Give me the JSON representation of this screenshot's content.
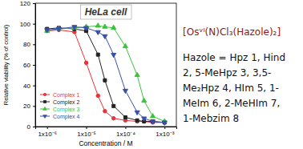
{
  "chart_data": {
    "type": "line",
    "title": "HeLa cell",
    "x_label": "Concentration / M",
    "y_label": "Relative viability (% of control)",
    "x": [
      1e-06,
      2e-06,
      5e-06,
      1e-05,
      2e-05,
      3e-05,
      5e-05,
      0.0001,
      0.0002,
      0.0003,
      0.0005,
      0.001
    ],
    "series": [
      {
        "name": "Complex 1",
        "color": "#e8333a",
        "marker": "circle",
        "values": [
          93,
          94,
          92,
          62,
          30,
          15,
          8,
          6,
          5,
          5,
          4,
          4
        ]
      },
      {
        "name": "Complex 2",
        "color": "#222222",
        "marker": "square",
        "values": [
          95,
          96,
          95,
          93,
          70,
          45,
          20,
          9,
          6,
          5,
          5,
          4
        ]
      },
      {
        "name": "Complex 3",
        "color": "#3cc23c",
        "marker": "triangle-up",
        "values": [
          93,
          95,
          96,
          97,
          98,
          97,
          96,
          78,
          50,
          25,
          10,
          5
        ]
      },
      {
        "name": "Complex 4",
        "color": "#3a4fa8",
        "marker": "triangle-down",
        "values": [
          94,
          95,
          97,
          96,
          92,
          88,
          70,
          35,
          14,
          8,
          5,
          4
        ]
      }
    ],
    "xlim": [
      5e-07,
      0.002
    ],
    "xticks": [
      {
        "value": 1e-06,
        "label": "1x10⁻⁶"
      },
      {
        "value": 1e-05,
        "label": "1x10⁻⁵"
      },
      {
        "value": 0.0001,
        "label": "1x10⁻⁴"
      },
      {
        "value": 0.001,
        "label": "1x10⁻³"
      }
    ],
    "ylim": [
      0,
      120
    ],
    "yticks": [
      0,
      20,
      40,
      60,
      80,
      100,
      120
    ],
    "log": "x",
    "grid": false,
    "legend": "lower left",
    "annotations": [
      "[Osᵛᴵ(N)Cl₃(Hazole)₂]",
      "Hazole = Hpz 1, Hind",
      "2, 5-MeHpz 3, 3,5-",
      "Me₂Hpz 4, HIm 5, 1-",
      "MeIm 6, 2-MeHIm 7,",
      "1-Mebzim 8"
    ]
  }
}
